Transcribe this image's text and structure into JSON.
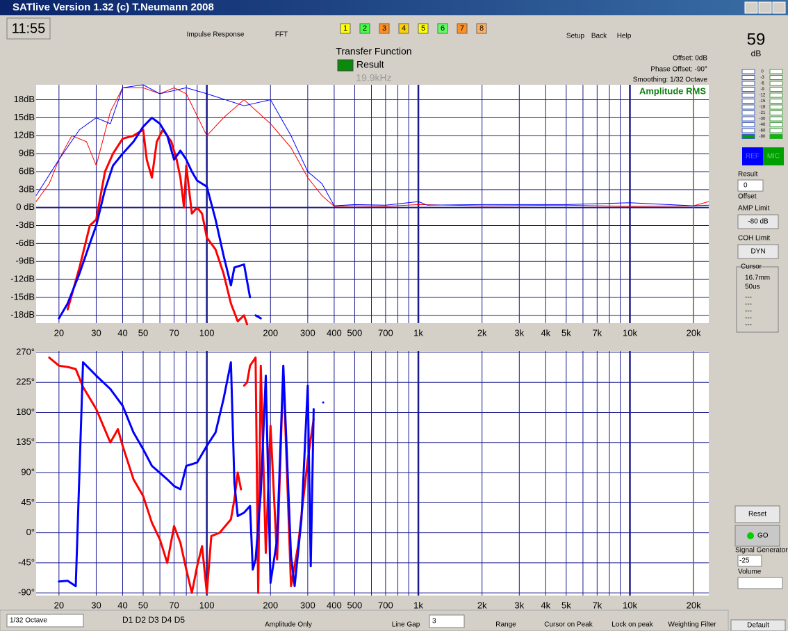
{
  "window": {
    "title": "SATlive Version 1.32 (c) T.Neumann 2008"
  },
  "toolbar": {
    "time": "11:55",
    "impulse": "Impulse Response",
    "fft": "FFT",
    "memories": [
      "1",
      "2",
      "3",
      "4",
      "5",
      "6",
      "7",
      "8"
    ],
    "setup": "Setup",
    "back": "Back",
    "help": "Help"
  },
  "header": {
    "title": "Transfer Function",
    "result": "Result",
    "offset": "Offset: 0dB",
    "phase_offset": "Phase Offset: -90°",
    "smoothing": "Smoothing: 1/32 Octave"
  },
  "chart_data": [
    {
      "type": "line",
      "annotation": "Amplitude RMS",
      "log_x": true,
      "grid": true,
      "cursor": {
        "value": 19900,
        "label": "19.9kHz"
      },
      "xlim": [
        15.6,
        23600
      ],
      "ylim": [
        -19.3,
        20.5
      ],
      "xgrid": [
        20,
        30,
        40,
        50,
        60,
        70,
        80,
        90,
        100,
        200,
        300,
        400,
        500,
        600,
        700,
        800,
        900,
        1000,
        2000,
        3000,
        4000,
        5000,
        6000,
        7000,
        8000,
        9000,
        10000,
        20000
      ],
      "xticks": [
        20,
        30,
        40,
        50,
        70,
        100,
        200,
        300,
        400,
        500,
        700,
        {
          "value": 1000,
          "label": "1k"
        },
        {
          "value": 2000,
          "label": "2k"
        },
        {
          "value": 3000,
          "label": "3k"
        },
        {
          "value": 4000,
          "label": "4k"
        },
        {
          "value": 5000,
          "label": "5k"
        },
        {
          "value": 7000,
          "label": "7k"
        },
        {
          "value": 10000,
          "label": "10k"
        },
        {
          "value": 20000,
          "label": "20k"
        }
      ],
      "yticks": [
        {
          "value": 18,
          "label": "18dB"
        },
        {
          "value": 15,
          "label": "15dB"
        },
        {
          "value": 12,
          "label": "12dB"
        },
        {
          "value": 9,
          "label": "9dB"
        },
        {
          "value": 6,
          "label": "6dB"
        },
        {
          "value": 3,
          "label": "3dB"
        },
        {
          "value": 0,
          "label": "0 dB"
        },
        {
          "value": -3,
          "label": "-3dB"
        },
        {
          "value": -6,
          "label": "-6dB"
        },
        {
          "value": -9,
          "label": "-9dB"
        },
        {
          "value": -12,
          "label": "-12dB"
        },
        {
          "value": -15,
          "label": "-15dB"
        },
        {
          "value": -18,
          "label": "-18dB"
        }
      ],
      "series": [
        {
          "color": "#ff0000",
          "width": 1,
          "x": [
            15.6,
            18,
            20,
            23,
            27,
            30,
            35,
            40,
            50,
            60,
            70,
            80,
            100,
            120,
            150,
            200,
            250,
            300,
            350,
            400,
            500,
            700,
            1000,
            2000,
            5000,
            10000,
            20000,
            23600
          ],
          "values": [
            1,
            4,
            8,
            12,
            11,
            7,
            16,
            20,
            20,
            19,
            20,
            19,
            12,
            15,
            18,
            14,
            10,
            5,
            2,
            0.2,
            0.3,
            0.2,
            0.5,
            0.3,
            0.4,
            0.2,
            0.3,
            1
          ]
        },
        {
          "color": "#0000ff",
          "width": 1,
          "x": [
            15.6,
            20,
            25,
            30,
            35,
            40,
            50,
            60,
            80,
            100,
            150,
            200,
            250,
            300,
            350,
            400,
            500,
            700,
            1000,
            1100,
            2000,
            5000,
            10000,
            20000,
            23600
          ],
          "values": [
            2,
            8,
            13,
            15,
            14,
            20,
            20.5,
            19,
            20,
            19,
            17,
            18,
            12,
            6,
            4,
            0.3,
            0.5,
            0.4,
            1,
            0.4,
            0.5,
            0.5,
            0.8,
            0.3,
            0.4
          ]
        },
        {
          "color": "#ff0000",
          "width": 3,
          "x": [
            22,
            25,
            28,
            30,
            33,
            36,
            40,
            45,
            50,
            52,
            55,
            58,
            62,
            68,
            72,
            75,
            78,
            80,
            85,
            90,
            95,
            100,
            110,
            120,
            130,
            140,
            150,
            155
          ],
          "values": [
            -17,
            -10,
            -3,
            -2,
            6,
            9,
            11.5,
            12,
            13,
            8,
            5,
            11,
            13,
            11,
            8,
            5,
            0,
            7,
            -1,
            0,
            -1,
            -5,
            -7,
            -11,
            -16,
            -19,
            -18,
            -19.5
          ]
        },
        {
          "color": "#0000ff",
          "width": 3,
          "x": [
            20,
            22,
            25,
            28,
            30,
            33,
            36,
            40,
            45,
            50,
            55,
            60,
            65,
            70,
            75,
            80,
            85,
            90,
            100,
            110,
            120,
            130,
            135,
            150,
            160,
            165,
            170,
            180
          ],
          "values": [
            -18.5,
            -16,
            -11,
            -6,
            -3,
            3,
            7,
            9,
            11,
            13.5,
            15,
            14,
            12,
            8,
            9.5,
            8,
            6,
            4.5,
            3.5,
            -2,
            -8,
            -13,
            -10,
            -9.5,
            -15,
            null,
            -18,
            -18.5
          ]
        }
      ]
    },
    {
      "type": "line",
      "log_x": true,
      "grid": true,
      "cursor": {
        "value": 19900
      },
      "xlim": [
        15.6,
        23600
      ],
      "ylim": [
        -94,
        272
      ],
      "xgrid": [
        20,
        30,
        40,
        50,
        60,
        70,
        80,
        90,
        100,
        200,
        300,
        400,
        500,
        600,
        700,
        800,
        900,
        1000,
        2000,
        3000,
        4000,
        5000,
        6000,
        7000,
        8000,
        9000,
        10000,
        20000
      ],
      "xticks": [
        20,
        30,
        40,
        50,
        70,
        100,
        200,
        300,
        400,
        500,
        700,
        {
          "value": 1000,
          "label": "1k"
        },
        {
          "value": 2000,
          "label": "2k"
        },
        {
          "value": 3000,
          "label": "3k"
        },
        {
          "value": 4000,
          "label": "4k"
        },
        {
          "value": 5000,
          "label": "5k"
        },
        {
          "value": 7000,
          "label": "7k"
        },
        {
          "value": 10000,
          "label": "10k"
        },
        {
          "value": 20000,
          "label": "20k"
        }
      ],
      "yticks": [
        {
          "value": 270,
          "label": "270°"
        },
        {
          "value": 225,
          "label": "225°"
        },
        {
          "value": 180,
          "label": "180°"
        },
        {
          "value": 135,
          "label": "135°"
        },
        {
          "value": 90,
          "label": "90°"
        },
        {
          "value": 45,
          "label": "45°"
        },
        {
          "value": 0,
          "label": "0°"
        },
        {
          "value": -45,
          "label": "-45°"
        },
        {
          "value": -90,
          "label": "-90°"
        }
      ],
      "series": [
        {
          "color": "#ff0000",
          "width": 3,
          "x": [
            18,
            20,
            22,
            24,
            26,
            30,
            35,
            38,
            40,
            45,
            50,
            55,
            60,
            65,
            70,
            75,
            80,
            85,
            90,
            95,
            100,
            105,
            115,
            130,
            135,
            140,
            145,
            147,
            150,
            155,
            160,
            170,
            175,
            180,
            190,
            200,
            215,
            230,
            250,
            270,
            300,
            320
          ],
          "values": [
            262,
            250,
            248,
            245,
            218,
            185,
            135,
            155,
            130,
            80,
            55,
            15,
            -10,
            -45,
            10,
            -15,
            -55,
            -90,
            -50,
            -20,
            -90,
            -5,
            0,
            20,
            50,
            90,
            65,
            null,
            220,
            225,
            250,
            262,
            -90,
            250,
            -30,
            160,
            -40,
            245,
            -80,
            -20,
            110,
            170
          ]
        },
        {
          "color": "#0000ff",
          "width": 3,
          "x": [
            20,
            22,
            24,
            26,
            30,
            35,
            40,
            45,
            50,
            55,
            65,
            70,
            75,
            80,
            90,
            100,
            110,
            120,
            130,
            135,
            140,
            150,
            160,
            165,
            170,
            180,
            190,
            200,
            215,
            230,
            250,
            260,
            280,
            300,
            310,
            320,
            330,
            355
          ],
          "values": [
            -73,
            -72,
            -80,
            255,
            235,
            215,
            190,
            150,
            125,
            100,
            80,
            70,
            65,
            100,
            105,
            130,
            150,
            200,
            255,
            75,
            25,
            30,
            40,
            -55,
            -40,
            60,
            235,
            -75,
            -10,
            250,
            -35,
            -80,
            20,
            220,
            -50,
            185,
            null,
            195
          ]
        }
      ]
    }
  ],
  "side_panel": {
    "level": "59",
    "unit": "dB",
    "meter_labels": [
      0,
      -3,
      -6,
      -9,
      -12,
      -15,
      -18,
      -21,
      -30,
      -40,
      -60,
      -90
    ],
    "ref": "REF",
    "mic": "MIC",
    "result": "Result",
    "result_value": "0",
    "offset": "Offset",
    "amp_limit": "AMP Limit",
    "amp_value": "-80 dB",
    "coh_limit": "COH Limit",
    "coh_value": "DYN",
    "cursor": "Cursor",
    "cursor_mm": "16.7mm",
    "cursor_us": "50us",
    "cursor_lines": [
      "---",
      "---",
      "---",
      "---",
      "---"
    ],
    "reset": "Reset",
    "go": "GO",
    "generator": "Signal Generator",
    "gen_value": "-25",
    "volume": "Volume",
    "default": "Default"
  },
  "bottom_toolbar": {
    "smoothing": "1/32 Octave",
    "delays": "D1 D2 D3 D4 D5",
    "amplitude": "Amplitude Only",
    "line_gap": "Line Gap",
    "gap_value": "3",
    "range": "Range",
    "cursor_peak": "Cursor on Peak",
    "lock_peak": "Lock on peak",
    "weighting": "Weighting Filter"
  }
}
